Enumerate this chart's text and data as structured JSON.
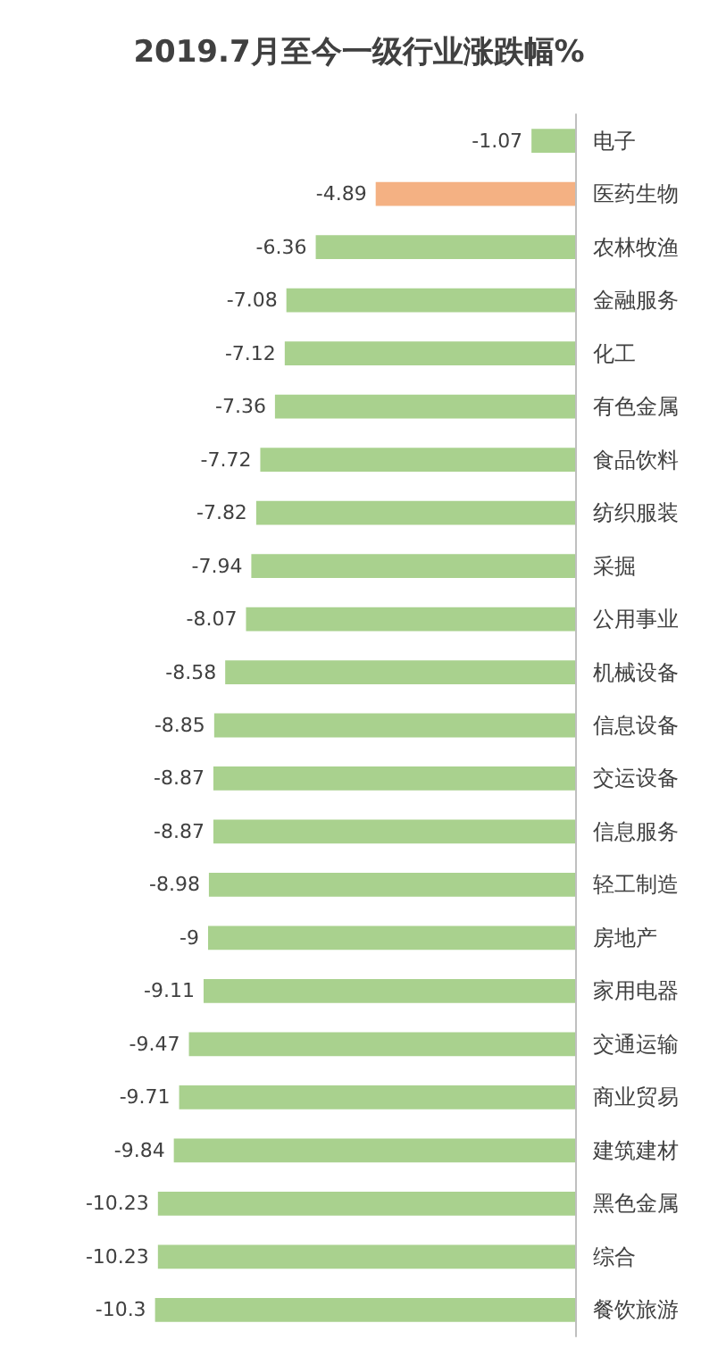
{
  "chart_data": {
    "type": "bar",
    "orientation": "horizontal",
    "title": "2019.7月至今一级行业涨跌幅%",
    "categories": [
      "电子",
      "医药生物",
      "农林牧渔",
      "金融服务",
      "化工",
      "有色金属",
      "食品饮料",
      "纺织服装",
      "采掘",
      "公用事业",
      "机械设备",
      "信息设备",
      "交运设备",
      "信息服务",
      "轻工制造",
      "房地产",
      "家用电器",
      "交通运输",
      "商业贸易",
      "建筑建材",
      "黑色金属",
      "综合",
      "餐饮旅游"
    ],
    "values": [
      -1.07,
      -4.89,
      -6.36,
      -7.08,
      -7.12,
      -7.36,
      -7.72,
      -7.82,
      -7.94,
      -8.07,
      -8.58,
      -8.85,
      -8.87,
      -8.87,
      -8.98,
      -9,
      -9.11,
      -9.47,
      -9.71,
      -9.84,
      -10.23,
      -10.23,
      -10.3
    ],
    "colors": [
      "#a9d18e",
      "#f4b183",
      "#a9d18e",
      "#a9d18e",
      "#a9d18e",
      "#a9d18e",
      "#a9d18e",
      "#a9d18e",
      "#a9d18e",
      "#a9d18e",
      "#a9d18e",
      "#a9d18e",
      "#a9d18e",
      "#a9d18e",
      "#a9d18e",
      "#a9d18e",
      "#a9d18e",
      "#a9d18e",
      "#a9d18e",
      "#a9d18e",
      "#a9d18e",
      "#a9d18e",
      "#a9d18e"
    ],
    "data_labels": true,
    "tick_labels": "y"
  }
}
